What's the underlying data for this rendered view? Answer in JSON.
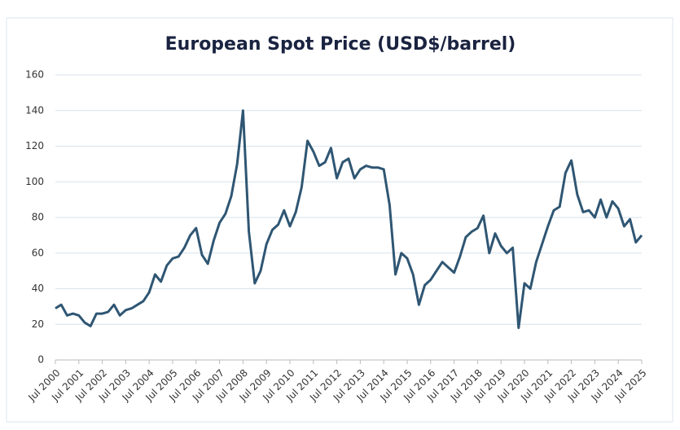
{
  "chart_data": {
    "type": "line",
    "title": "European Spot Price (USD$/barrel)",
    "categories": [
      "Jul 2000",
      null,
      null,
      null,
      "Jul 2001",
      null,
      null,
      null,
      "Jul 2002",
      null,
      null,
      null,
      "Jul 2003",
      null,
      null,
      null,
      "Jul 2004",
      null,
      null,
      null,
      "Jul 2005",
      null,
      null,
      null,
      "Jul 2006",
      null,
      null,
      null,
      "Jul 2007",
      null,
      null,
      null,
      "Jul 2008",
      null,
      null,
      null,
      "Jul 2009",
      null,
      null,
      null,
      "Jul 2010",
      null,
      null,
      null,
      "Jul 2011",
      null,
      null,
      null,
      "Jul 2012",
      null,
      null,
      null,
      "Jul 2013",
      null,
      null,
      null,
      "Jul 2014",
      null,
      null,
      null,
      "Jul 2015",
      null,
      null,
      null,
      "Jul 2016",
      null,
      null,
      null,
      "Jul 2017",
      null,
      null,
      null,
      "Jul 2018",
      null,
      null,
      null,
      "Jul 2019",
      null,
      null,
      null,
      "Jul 2020",
      null,
      null,
      null,
      "Jul 2021",
      null,
      null,
      null,
      "Jul 2022",
      null,
      null,
      null,
      "Jul 2023",
      null,
      null,
      null,
      "Jul 2024",
      null,
      null,
      null,
      "Jul 2025"
    ],
    "series": [
      {
        "name": "European Spot Price",
        "color": "#2f5673",
        "values": [
          29,
          31,
          25,
          26,
          25,
          21,
          19,
          26,
          26,
          27,
          31,
          25,
          28,
          29,
          31,
          33,
          38,
          48,
          44,
          53,
          57,
          58,
          63,
          70,
          74,
          59,
          54,
          67,
          77,
          82,
          92,
          110,
          140,
          72,
          43,
          50,
          65,
          73,
          76,
          84,
          75,
          83,
          97,
          123,
          117,
          109,
          111,
          119,
          102,
          111,
          113,
          102,
          107,
          109,
          108,
          108,
          107,
          87,
          48,
          60,
          57,
          48,
          31,
          42,
          45,
          50,
          55,
          52,
          49,
          58,
          69,
          72,
          74,
          81,
          60,
          71,
          64,
          60,
          63,
          18,
          43,
          40,
          55,
          65,
          75,
          84,
          86,
          105,
          112,
          93,
          83,
          84,
          80,
          90,
          80,
          89,
          85,
          75,
          79,
          66,
          70
        ]
      }
    ],
    "ylim": [
      0,
      160
    ],
    "yticks": [
      0,
      20,
      40,
      60,
      80,
      100,
      120,
      140,
      160
    ],
    "grid": true
  }
}
